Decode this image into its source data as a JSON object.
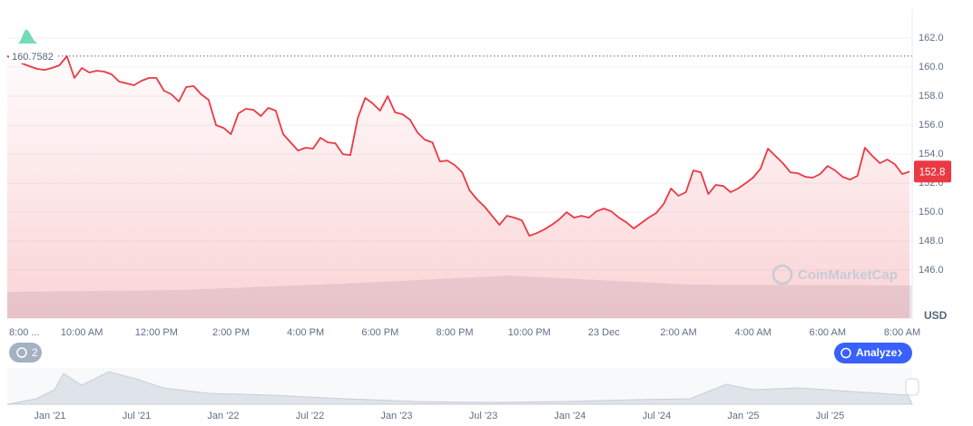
{
  "chart_data": {
    "type": "line",
    "color": "#ea3943",
    "categories": [
      "8:00 ...",
      null,
      null,
      null,
      null,
      null,
      null,
      null,
      null,
      null,
      "10:00 AM",
      null,
      null,
      null,
      null,
      null,
      null,
      null,
      null,
      null,
      "12:00 PM",
      null,
      null,
      null,
      null,
      null,
      null,
      null,
      null,
      null,
      "2:00 PM",
      null,
      null,
      null,
      null,
      null,
      null,
      null,
      null,
      null,
      "4:00 PM",
      null,
      null,
      null,
      null,
      null,
      null,
      null,
      null,
      null,
      "6:00 PM",
      null,
      null,
      null,
      null,
      null,
      null,
      null,
      null,
      null,
      "8:00 PM",
      null,
      null,
      null,
      null,
      null,
      null,
      null,
      null,
      null,
      "10:00 PM",
      null,
      null,
      null,
      null,
      null,
      null,
      null,
      null,
      null,
      "23 Dec",
      null,
      null,
      null,
      null,
      null,
      null,
      null,
      null,
      null,
      "2:00 AM",
      null,
      null,
      null,
      null,
      null,
      null,
      null,
      null,
      null,
      "4:00 AM",
      null,
      null,
      null,
      null,
      null,
      null,
      null,
      null,
      null,
      "6:00 AM",
      null,
      null,
      null,
      null,
      null,
      null,
      null,
      null,
      null,
      "8:00 AM",
      null
    ],
    "values": [
      160.75,
      160.56,
      160.25,
      160.06,
      159.88,
      159.81,
      159.94,
      160.13,
      160.75,
      159.25,
      159.94,
      159.63,
      159.75,
      159.69,
      159.5,
      159.0,
      158.88,
      158.75,
      159.06,
      159.25,
      159.25,
      158.38,
      158.13,
      157.63,
      158.63,
      158.69,
      158.13,
      157.75,
      156.0,
      155.81,
      155.38,
      156.81,
      157.13,
      157.06,
      156.63,
      157.19,
      157.0,
      155.38,
      154.81,
      154.25,
      154.44,
      154.38,
      155.13,
      154.81,
      154.75,
      154.0,
      153.94,
      156.5,
      157.88,
      157.5,
      157.0,
      158.0,
      156.88,
      156.75,
      156.38,
      155.5,
      155.0,
      154.81,
      153.5,
      153.56,
      153.25,
      152.75,
      151.5,
      150.88,
      150.38,
      149.75,
      149.13,
      149.75,
      149.63,
      149.44,
      148.38,
      148.56,
      148.81,
      149.13,
      149.5,
      150.0,
      149.63,
      149.75,
      149.63,
      150.06,
      150.25,
      150.06,
      149.63,
      149.31,
      148.88,
      149.25,
      149.63,
      149.94,
      150.56,
      151.63,
      151.13,
      151.38,
      152.88,
      152.75,
      151.25,
      151.88,
      151.81,
      151.38,
      151.63,
      152.0,
      152.38,
      153.0,
      154.38,
      153.88,
      153.38,
      152.75,
      152.69,
      152.44,
      152.38,
      152.63,
      153.19,
      152.88,
      152.44,
      152.25,
      152.5,
      154.44,
      153.88,
      153.38,
      153.63,
      153.31,
      152.63,
      152.8
    ],
    "ylim": [
      142.7,
      164
    ],
    "yticks": [
      {
        "value": 146,
        "label": "146.0"
      },
      {
        "value": 148,
        "label": "148.0"
      },
      {
        "value": 150,
        "label": "150.0"
      },
      {
        "value": 152,
        "label": "152.0"
      },
      {
        "value": 154,
        "label": "154.0"
      },
      {
        "value": 156,
        "label": "156.0"
      },
      {
        "value": 158,
        "label": "158.0"
      },
      {
        "value": 160,
        "label": "160.0"
      },
      {
        "value": 162,
        "label": "162.0"
      }
    ],
    "grid": true,
    "reference_value": 160.7582,
    "current_price": 152.8,
    "currency": "USD",
    "watermark": "CoinMarketCap",
    "navigator_labels": [
      "Jan '21",
      "Jul '21",
      "Jan '22",
      "Jul '22",
      "Jan '23",
      "Jul '23",
      "Jan '24",
      "Jul '24",
      "Jan '25",
      "Jul '25"
    ]
  },
  "ui": {
    "history_count": "2",
    "analyze_button": "Analyze"
  }
}
